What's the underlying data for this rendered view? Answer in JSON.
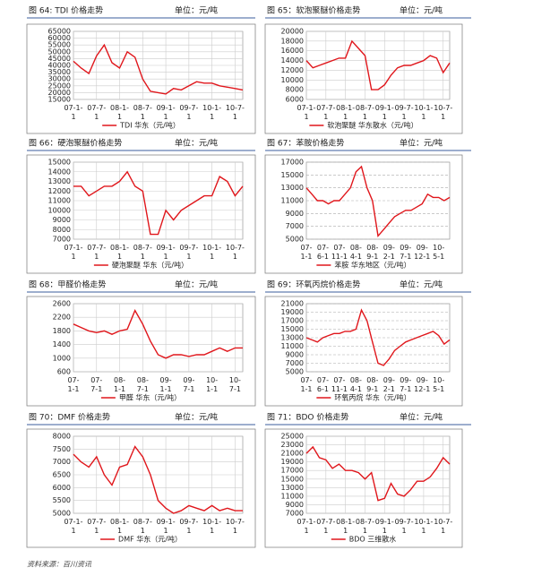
{
  "chart_data": [
    {
      "type": "line",
      "title": "图 64: TDI 价格走势",
      "unit": "单位：元/吨",
      "categories": [
        "07-1-1",
        null,
        null,
        "07-7-1",
        null,
        null,
        "08-1-1",
        null,
        null,
        "08-7-1",
        null,
        null,
        "09-1-1",
        null,
        null,
        "09-7-1",
        null,
        null,
        "10-1-1",
        null,
        null,
        "10-7-1",
        null
      ],
      "series": [
        {
          "name": "TDI 华东（元/吨）",
          "color": "#e0161b",
          "values": [
            43000,
            38000,
            34000,
            47000,
            55000,
            42000,
            38000,
            50000,
            46000,
            30000,
            21000,
            20000,
            19000,
            23000,
            22000,
            25000,
            28000,
            27000,
            27000,
            25000,
            24000,
            23000,
            22000
          ]
        }
      ],
      "ylim": [
        15000,
        65000
      ],
      "yticks": [
        15000,
        20000,
        25000,
        30000,
        35000,
        40000,
        45000,
        50000,
        55000,
        60000,
        65000
      ],
      "grid": true
    },
    {
      "type": "line",
      "title": "图 65：软泡聚醚价格走势",
      "unit": "单位：元/吨",
      "categories": [
        "07-1-1",
        null,
        null,
        "07-7-1",
        null,
        null,
        "08-1-1",
        null,
        null,
        "08-7-1",
        null,
        null,
        "09-1-1",
        null,
        null,
        "09-7-1",
        null,
        null,
        "10-1-1",
        null,
        null,
        "10-7-1",
        null
      ],
      "series": [
        {
          "name": "软泡聚醚 华东散水（元/吨）",
          "color": "#e0161b",
          "values": [
            14000,
            12500,
            13000,
            13500,
            14000,
            14500,
            14500,
            18000,
            16500,
            15000,
            8000,
            8000,
            9000,
            11000,
            12500,
            13000,
            13000,
            13500,
            14000,
            15000,
            14500,
            11500,
            13500
          ]
        }
      ],
      "ylim": [
        6000,
        20000
      ],
      "yticks": [
        6000,
        8000,
        10000,
        12000,
        14000,
        16000,
        18000,
        20000
      ],
      "grid": true
    },
    {
      "type": "line",
      "title": "图 66：硬泡聚醚价格走势",
      "unit": "单位：元/吨",
      "categories": [
        "07-1-1",
        null,
        null,
        "07-7-1",
        null,
        null,
        "08-1-1",
        null,
        null,
        "08-7-1",
        null,
        null,
        "09-1-1",
        null,
        null,
        "09-7-1",
        null,
        null,
        "10-1-1",
        null,
        null,
        "10-7-1",
        null
      ],
      "series": [
        {
          "name": "硬泡聚醚 华东（元/吨）",
          "color": "#e0161b",
          "values": [
            12500,
            12500,
            11500,
            12000,
            12500,
            12500,
            13000,
            14000,
            12500,
            12000,
            7500,
            7500,
            10000,
            9000,
            10000,
            10500,
            11000,
            11500,
            11500,
            13500,
            13000,
            11500,
            12500
          ]
        }
      ],
      "ylim": [
        7000,
        15000
      ],
      "yticks": [
        7000,
        8000,
        9000,
        10000,
        11000,
        12000,
        13000,
        14000,
        15000
      ],
      "grid": true
    },
    {
      "type": "line",
      "title": "图 67：苯胺价格走势",
      "unit": "单位：元/吨",
      "categories": [
        "07-1-1",
        null,
        null,
        "07-6-1",
        null,
        null,
        "07-11-1",
        null,
        null,
        "08-4-1",
        null,
        null,
        "08-9-1",
        null,
        null,
        "09-2-1",
        null,
        null,
        "09-7-1",
        null,
        null,
        "09-12-1",
        null,
        null,
        "10-5-1",
        null,
        null
      ],
      "series": [
        {
          "name": "苯胺 华东地区（元/吨）",
          "color": "#e0161b",
          "values": [
            13000,
            12000,
            11000,
            11000,
            10500,
            11000,
            11000,
            12000,
            13000,
            15500,
            16300,
            13000,
            11000,
            5500,
            6500,
            7500,
            8500,
            9000,
            9500,
            9500,
            10000,
            10500,
            12000,
            11500,
            11500,
            11000,
            11500
          ]
        }
      ],
      "ylim": [
        5000,
        17000
      ],
      "yticks": [
        5000,
        7000,
        9000,
        11000,
        13000,
        15000,
        17000
      ],
      "grid": true
    },
    {
      "type": "line",
      "title": "图 68：甲醛价格走势",
      "unit": "单位：元/吨",
      "categories": [
        "07-1-1",
        null,
        null,
        "07-7-1",
        null,
        null,
        "08-1-1",
        null,
        null,
        "08-7-1",
        null,
        null,
        "09-1-1",
        null,
        null,
        "09-7-1",
        null,
        null,
        "10-1-1",
        null,
        null,
        "10-7-1",
        null
      ],
      "series": [
        {
          "name": "甲醛 华东（元/吨）",
          "color": "#e0161b",
          "values": [
            2000,
            1900,
            1800,
            1750,
            1800,
            1700,
            1800,
            1850,
            2400,
            2000,
            1500,
            1100,
            1000,
            1100,
            1100,
            1050,
            1100,
            1100,
            1200,
            1300,
            1200,
            1300,
            1300
          ]
        }
      ],
      "ylim": [
        600,
        2600
      ],
      "yticks": [
        600,
        1000,
        1400,
        1800,
        2200,
        2600
      ],
      "grid": true
    },
    {
      "type": "line",
      "title": "图 69：环氧丙烷价格走势",
      "unit": "单位：元/吨",
      "categories": [
        "07-1-1",
        null,
        null,
        "07-6-1",
        null,
        null,
        "07-11-1",
        null,
        null,
        "08-4-1",
        null,
        null,
        "08-9-1",
        null,
        null,
        "09-2-1",
        null,
        null,
        "09-7-1",
        null,
        null,
        "09-12-1",
        null,
        null,
        "10-5-1",
        null,
        null
      ],
      "series": [
        {
          "name": "环氧丙烷 华东（元/吨）",
          "color": "#e0161b",
          "values": [
            13000,
            12500,
            12000,
            13000,
            13500,
            14000,
            14000,
            14500,
            14500,
            15000,
            19500,
            17000,
            12000,
            7000,
            6500,
            8000,
            10000,
            11000,
            12000,
            12500,
            13000,
            13500,
            14000,
            14500,
            13500,
            11500,
            12500
          ]
        }
      ],
      "ylim": [
        5000,
        21000
      ],
      "yticks": [
        5000,
        7000,
        9000,
        11000,
        13000,
        15000,
        17000,
        19000,
        21000
      ],
      "grid": true
    },
    {
      "type": "line",
      "title": "图 70：DMF 价格走势",
      "unit": "单位：元/吨",
      "categories": [
        "07-1-1",
        null,
        null,
        "07-7-1",
        null,
        null,
        "08-1-1",
        null,
        null,
        "08-7-1",
        null,
        null,
        "09-1-1",
        null,
        null,
        "09-7-1",
        null,
        null,
        "10-1-1",
        null,
        null,
        "10-7-1",
        null
      ],
      "series": [
        {
          "name": "DMF 华东（元/吨）",
          "color": "#e0161b",
          "values": [
            7300,
            7000,
            6800,
            7200,
            6500,
            6100,
            6800,
            6900,
            7600,
            7200,
            6500,
            5500,
            5200,
            5000,
            5100,
            5300,
            5200,
            5100,
            5300,
            5100,
            5200,
            5100,
            5100
          ]
        }
      ],
      "ylim": [
        5000,
        8000
      ],
      "yticks": [
        5000,
        5500,
        6000,
        6500,
        7000,
        7500,
        8000
      ],
      "grid": true
    },
    {
      "type": "line",
      "title": "图 71：BDO 价格走势",
      "unit": "单位：元/吨",
      "categories": [
        "07-1-1",
        null,
        null,
        "07-7-1",
        null,
        null,
        "08-1-1",
        null,
        null,
        "08-7-1",
        null,
        null,
        "09-1-1",
        null,
        null,
        "09-7-1",
        null,
        null,
        "10-1-1",
        null,
        null,
        "10-7-1",
        null
      ],
      "series": [
        {
          "name": "BDO 三维散水",
          "color": "#e0161b",
          "values": [
            21000,
            22500,
            20000,
            19500,
            17500,
            18500,
            17000,
            17000,
            16500,
            15000,
            16500,
            10000,
            10500,
            14000,
            11500,
            11000,
            12500,
            14500,
            14500,
            15500,
            17500,
            20000,
            18500
          ]
        }
      ],
      "ylim": [
        7000,
        25000
      ],
      "yticks": [
        7000,
        9000,
        11000,
        13000,
        15000,
        17000,
        19000,
        21000,
        23000,
        25000
      ],
      "grid": true
    }
  ],
  "source": "资料来源：百川资讯"
}
